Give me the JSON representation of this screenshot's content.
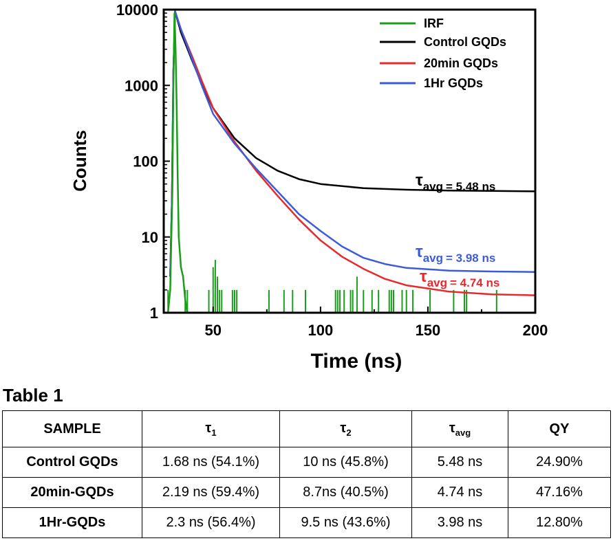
{
  "chart_data": {
    "type": "line",
    "xlabel": "Time (ns)",
    "ylabel": "Counts",
    "xlim": [
      27,
      200
    ],
    "ylim": [
      1,
      10000
    ],
    "yscale": "log",
    "xticks": [
      50,
      100,
      150,
      200
    ],
    "yticks": [
      1,
      10,
      100,
      1000,
      10000
    ],
    "legend": {
      "placement": "top-right",
      "entries": [
        "IRF",
        "Control GQDs",
        "20min GQDs",
        "1Hr GQDs"
      ]
    },
    "series": [
      {
        "name": "IRF",
        "color": "#1a9e1a",
        "x": [
          29,
          30,
          31,
          31.5,
          32,
          32.5,
          33,
          33.5,
          34,
          35,
          36,
          37,
          38
        ],
        "y": [
          1,
          2,
          40,
          900,
          9000,
          3000,
          600,
          60,
          10,
          4,
          3,
          1.5,
          1
        ]
      },
      {
        "name": "Control GQDs",
        "color": "#000000",
        "x": [
          30,
          30.8,
          31.5,
          32.3,
          35,
          40,
          45,
          50,
          60,
          70,
          80,
          90,
          100,
          120,
          140,
          160,
          180,
          200
        ],
        "y": [
          3,
          30,
          1500,
          9500,
          5000,
          2200,
          1000,
          500,
          200,
          110,
          75,
          58,
          50,
          44,
          42,
          41,
          40.5,
          40
        ]
      },
      {
        "name": "20min GQDs",
        "color": "#e8282b",
        "x": [
          30,
          30.8,
          31.5,
          32.3,
          35,
          40,
          45,
          50,
          60,
          70,
          80,
          90,
          100,
          110,
          120,
          130,
          140,
          160,
          180,
          200
        ],
        "y": [
          3,
          30,
          1500,
          9500,
          5500,
          2500,
          1100,
          500,
          180,
          75,
          35,
          17,
          9,
          5.5,
          3.8,
          2.8,
          2.3,
          1.9,
          1.75,
          1.7
        ]
      },
      {
        "name": "1Hr GQDs",
        "color": "#3b5bdc",
        "x": [
          30,
          30.8,
          31.5,
          32.3,
          35,
          40,
          45,
          50,
          60,
          70,
          80,
          90,
          100,
          110,
          120,
          130,
          140,
          160,
          180,
          200
        ],
        "y": [
          3,
          30,
          1500,
          9500,
          5500,
          2300,
          950,
          420,
          170,
          80,
          40,
          20,
          12,
          7.5,
          5.3,
          4.4,
          3.9,
          3.6,
          3.5,
          3.45
        ]
      }
    ],
    "irf_spikes_x": [
      29,
      37,
      38,
      48,
      50,
      51,
      52,
      53,
      54,
      59,
      60,
      61,
      76,
      83,
      87,
      93,
      107,
      108,
      109,
      111,
      114,
      115,
      117,
      120,
      124,
      127,
      132,
      133,
      134,
      138,
      140,
      143,
      151,
      162,
      167,
      168,
      182
    ],
    "irf_spikes_y": [
      2,
      2,
      2,
      2,
      4,
      5,
      3,
      2,
      2,
      2,
      2,
      2,
      2,
      2,
      2,
      2,
      2,
      2,
      2,
      2,
      2,
      2,
      3,
      2,
      2,
      2,
      2,
      2,
      2,
      2,
      2,
      2,
      2,
      2,
      2,
      2,
      2
    ],
    "annotations": [
      {
        "symbol": "τ",
        "sub": "avg",
        "text": "= 5.48 ns",
        "color": "#000000"
      },
      {
        "symbol": "τ",
        "sub": "avg",
        "text": "= 3.98 ns",
        "color": "#3b5bdc"
      },
      {
        "symbol": "τ",
        "sub": "avg",
        "text": "= 4.74 ns",
        "color": "#e8282b"
      }
    ]
  },
  "table": {
    "caption": "Table 1",
    "headers": {
      "sample": "SAMPLE",
      "tau1_sym": "τ",
      "tau1_sub": "1",
      "tau2_sym": "τ",
      "tau2_sub": "2",
      "tauavg_sym": "τ",
      "tauavg_sub": "avg",
      "qy": "QY"
    },
    "rows": [
      {
        "sample": "Control GQDs",
        "tau1": "1.68 ns (54.1%)",
        "tau2": "10 ns (45.8%)",
        "tauavg": "5.48 ns",
        "qy": "24.90%"
      },
      {
        "sample": "20min-GQDs",
        "tau1": "2.19 ns (59.4%)",
        "tau2": "8.7ns (40.5%)",
        "tauavg": "4.74 ns",
        "qy": "47.16%"
      },
      {
        "sample": "1Hr-GQDs",
        "tau1": "2.3 ns (56.4%)",
        "tau2": "9.5 ns (43.6%)",
        "tauavg": "3.98 ns",
        "qy": "12.80%"
      }
    ]
  }
}
